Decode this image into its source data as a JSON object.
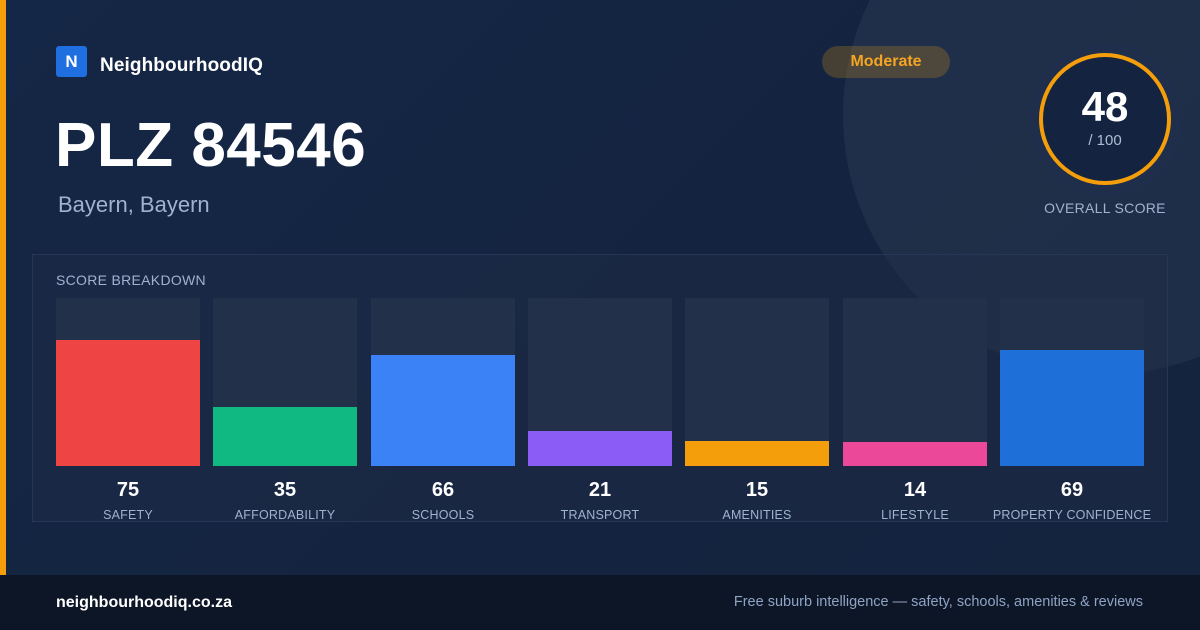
{
  "brand": {
    "logo_letter": "N",
    "name": "NeighbourhoodIQ"
  },
  "header": {
    "title": "PLZ 84546",
    "subtitle": "Bayern, Bayern",
    "badge": "Moderate"
  },
  "overall": {
    "value": "48",
    "max_label": "/ 100",
    "label": "OVERALL SCORE",
    "accent": "#f59e0b"
  },
  "breakdown": {
    "title": "SCORE BREAKDOWN"
  },
  "chart_data": {
    "type": "bar",
    "title": "SCORE BREAKDOWN",
    "categories": [
      "SAFETY",
      "AFFORDABILITY",
      "SCHOOLS",
      "TRANSPORT",
      "AMENITIES",
      "LIFESTYLE",
      "PROPERTY CONFIDENCE"
    ],
    "values": [
      75,
      35,
      66,
      21,
      15,
      14,
      69
    ],
    "colors": [
      "#ef4444",
      "#10b981",
      "#3b82f6",
      "#8b5cf6",
      "#f59e0b",
      "#ec4899",
      "#1f6fd8"
    ],
    "ylim": [
      0,
      100
    ],
    "grid": false,
    "legend": "none"
  },
  "footer": {
    "site": "neighbourhoodiq.co.za",
    "tagline": "Free suburb intelligence — safety, schools, amenities & reviews"
  }
}
